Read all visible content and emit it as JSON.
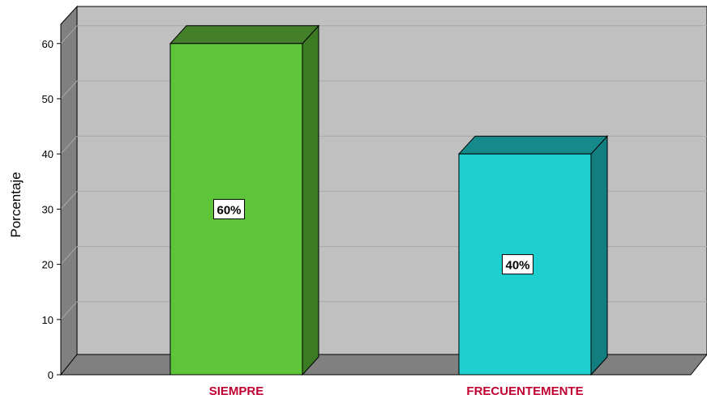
{
  "chart_data": {
    "type": "bar",
    "categories": [
      "SIEMPRE",
      "FRECUENTEMENTE"
    ],
    "values": [
      60,
      40
    ],
    "data_labels": [
      "60%",
      "40%"
    ],
    "ylabel": "Porcentaje",
    "ylim": [
      0,
      60
    ],
    "yticks": [
      "0",
      "10",
      "20",
      "30",
      "40",
      "50",
      "60"
    ],
    "grid": true,
    "style": "3d",
    "colors": {
      "bar_front": [
        "#5ec43a",
        "#1ecfcf"
      ],
      "bar_side": [
        "#3c7a24",
        "#127e80"
      ],
      "bar_top": [
        "#447f2a",
        "#168a8b"
      ],
      "wall": "#c0c0c0",
      "floor": "#808080",
      "category_text": "#c00030"
    }
  }
}
